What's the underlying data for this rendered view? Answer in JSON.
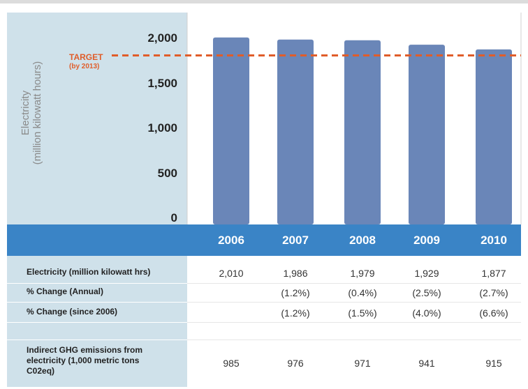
{
  "chart_data": {
    "type": "bar",
    "categories": [
      "2006",
      "2007",
      "2008",
      "2009",
      "2010"
    ],
    "values": [
      2010,
      1986,
      1979,
      1929,
      1877
    ],
    "ylabel": "Electricity\n(million kilowatt hours)",
    "ylim": [
      0,
      2000
    ],
    "yticks": [
      "2,000",
      "1,500",
      "1,000",
      "500",
      "0"
    ],
    "ytick_values": [
      2000,
      1500,
      1000,
      500,
      0
    ],
    "target": {
      "value": 1810,
      "label": "TARGET",
      "sublabel": "(by 2013)"
    },
    "colors": {
      "bar": "#6a86b8",
      "target": "#e05d2a",
      "header": "#3a84c6",
      "panel": "#cfe1ea"
    }
  },
  "table": {
    "rows": [
      {
        "label": "Electricity (million kilowatt hrs)",
        "values": [
          "2,010",
          "1,986",
          "1,979",
          "1,929",
          "1,877"
        ]
      },
      {
        "label": "% Change (Annual)",
        "values": [
          "",
          "(1.2%)",
          "(0.4%)",
          "(2.5%)",
          "(2.7%)"
        ]
      },
      {
        "label": "% Change (since 2006)",
        "values": [
          "",
          "(1.2%)",
          "(1.5%)",
          "(4.0%)",
          "(6.6%)"
        ]
      },
      {
        "label": "Indirect GHG emissions from electricity (1,000 metric tons C02eq)",
        "values": [
          "985",
          "976",
          "971",
          "941",
          "915"
        ]
      }
    ]
  }
}
